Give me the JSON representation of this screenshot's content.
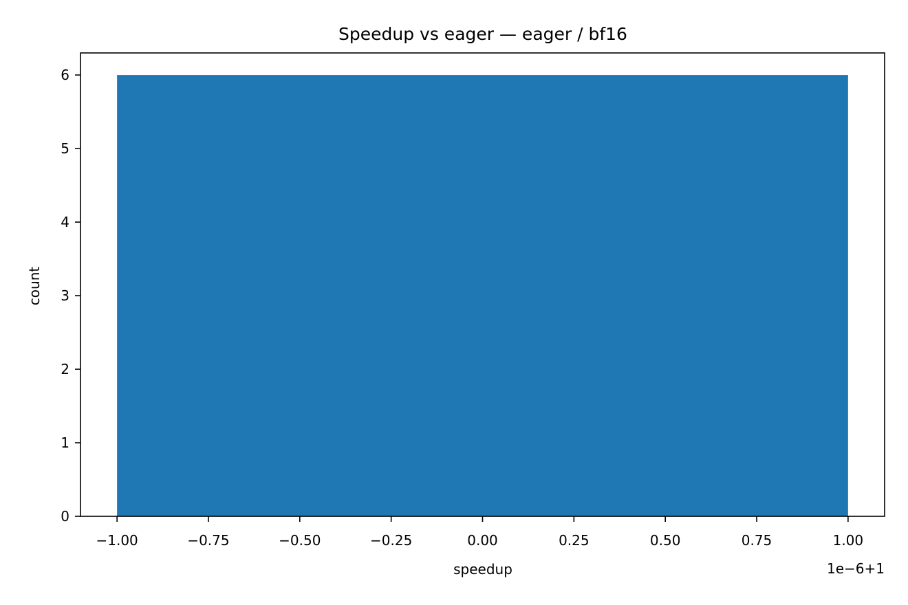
{
  "chart_data": {
    "type": "bar",
    "title": "Speedup vs eager — eager / bf16",
    "xlabel": "speedup",
    "ylabel": "count",
    "x_offset_label": "1e−6+1",
    "bins": [
      {
        "x_start": -1.0,
        "x_end": 1.0,
        "value": 6
      }
    ],
    "x_tick_values": [
      -1.0,
      -0.75,
      -0.5,
      -0.25,
      0.0,
      0.25,
      0.5,
      0.75,
      1.0
    ],
    "x_tick_labels": [
      "−1.00",
      "−0.75",
      "−0.50",
      "−0.25",
      "0.00",
      "0.25",
      "0.50",
      "0.75",
      "1.00"
    ],
    "y_tick_values": [
      0,
      1,
      2,
      3,
      4,
      5,
      6
    ],
    "y_tick_labels": [
      "0",
      "1",
      "2",
      "3",
      "4",
      "5",
      "6"
    ],
    "xlim": [
      -1.1,
      1.1
    ],
    "ylim": [
      0,
      6.3
    ],
    "grid": false,
    "bar_color": "#1f77b4"
  }
}
